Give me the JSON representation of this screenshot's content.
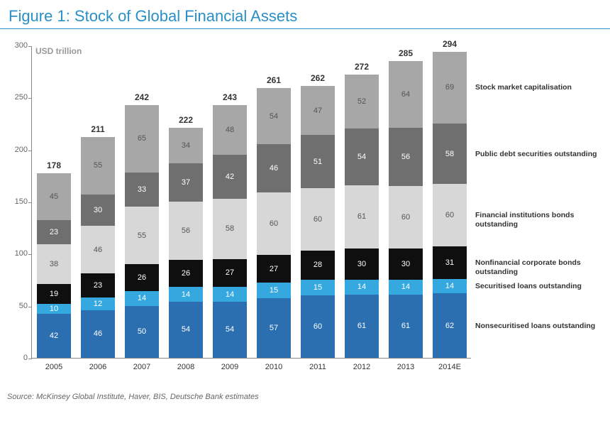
{
  "title": "Figure 1: Stock of Global Financial Assets",
  "subtitle": "USD trillion",
  "source": "Source: McKinsey Global Institute, Haver, BIS, Deutsche Bank estimates",
  "chart": {
    "type": "stacked-bar",
    "ylim": [
      0,
      300
    ],
    "ytick_step": 50,
    "yticks": [
      0,
      50,
      100,
      150,
      200,
      250,
      300
    ],
    "background_color": "#ffffff",
    "axis_color": "#888888",
    "tick_fontsize": 11,
    "label_fontsize": 11,
    "total_fontsize": 12,
    "bar_width": 0.78,
    "categories": [
      "2005",
      "2006",
      "2007",
      "2008",
      "2009",
      "2010",
      "2011",
      "2012",
      "2013",
      "2014E"
    ],
    "totals": [
      178,
      211,
      242,
      222,
      243,
      261,
      262,
      272,
      285,
      294
    ],
    "series": [
      {
        "key": "nonsecuritised_loans",
        "label": "Nonsecuritised loans outstanding",
        "color": "#2b6fb0",
        "text": "#ffffff",
        "values": [
          42,
          46,
          50,
          54,
          54,
          57,
          60,
          61,
          61,
          62
        ]
      },
      {
        "key": "securitised_loans",
        "label": "Securitised loans outstanding",
        "color": "#35a8e0",
        "text": "#ffffff",
        "values": [
          10,
          12,
          14,
          14,
          14,
          15,
          15,
          14,
          14,
          14
        ]
      },
      {
        "key": "nonfinancial_corp_bonds",
        "label": "Nonfinancial corporate bonds outstanding",
        "color": "#0f0f0f",
        "text": "#ffffff",
        "values": [
          19,
          23,
          26,
          26,
          27,
          27,
          28,
          30,
          30,
          31
        ]
      },
      {
        "key": "financial_inst_bonds",
        "label": "Financial institutions bonds outstanding",
        "color": "#d7d7d7",
        "text": "#555555",
        "values": [
          38,
          46,
          55,
          56,
          58,
          60,
          60,
          61,
          60,
          60
        ]
      },
      {
        "key": "public_debt",
        "label": "Public debt securities outstanding",
        "color": "#6f6f6f",
        "text": "#ffffff",
        "values": [
          23,
          30,
          33,
          37,
          42,
          46,
          51,
          54,
          56,
          58
        ]
      },
      {
        "key": "stock_market_cap",
        "label": "Stock market capitalisation",
        "color": "#a7a7a7",
        "text": "#555555",
        "values": [
          45,
          55,
          65,
          34,
          48,
          54,
          47,
          52,
          64,
          69
        ]
      }
    ]
  }
}
